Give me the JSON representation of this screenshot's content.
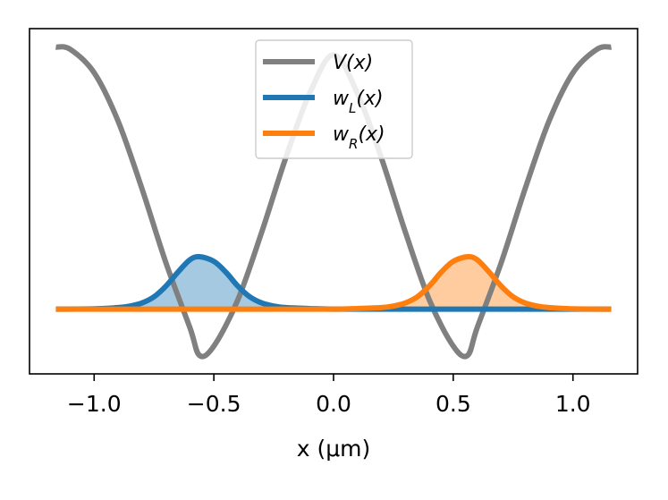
{
  "chart_data": {
    "type": "line",
    "title": "",
    "xlabel": "x (μm)",
    "ylabel": "",
    "xlim": [
      -1.27,
      1.27
    ],
    "ylim": [
      -0.06,
      1.06
    ],
    "x_ticks": [
      {
        "value": -1.0,
        "label": "−1.0"
      },
      {
        "value": -0.5,
        "label": "−0.5"
      },
      {
        "value": 0.0,
        "label": "0.0"
      },
      {
        "value": 0.5,
        "label": "0.5"
      },
      {
        "value": 1.0,
        "label": "1.0"
      }
    ],
    "y_ticks": [],
    "grid": false,
    "legend": {
      "placement": "top-center",
      "entries": [
        {
          "label": "V(x)",
          "color": "#808080"
        },
        {
          "label": "w_L(x)",
          "color": "#1f77b4"
        },
        {
          "label": "w_R(x)",
          "color": "#ff7f0e"
        }
      ]
    },
    "series": [
      {
        "name": "V(x)",
        "color": "#808080",
        "x": [
          -1.16,
          -1.1,
          -1.0,
          -0.9,
          -0.8,
          -0.7,
          -0.6,
          -0.56,
          -0.5,
          -0.4,
          -0.3,
          -0.2,
          -0.1,
          0.0,
          0.1,
          0.2,
          0.3,
          0.4,
          0.5,
          0.56,
          0.6,
          0.7,
          0.8,
          0.9,
          1.0,
          1.1,
          1.16
        ],
        "y": [
          1.0,
          0.993,
          0.917,
          0.76,
          0.54,
          0.3,
          0.09,
          0.0,
          0.03,
          0.18,
          0.4,
          0.64,
          0.85,
          0.975,
          0.85,
          0.64,
          0.4,
          0.18,
          0.03,
          0.0,
          0.09,
          0.3,
          0.54,
          0.76,
          0.917,
          0.993,
          1.0
        ]
      },
      {
        "name": "w_L(x)",
        "color": "#1f77b4",
        "fill": true,
        "x": [
          -1.16,
          -1.0,
          -0.9,
          -0.85,
          -0.8,
          -0.75,
          -0.7,
          -0.65,
          -0.6,
          -0.56,
          -0.5,
          -0.45,
          -0.4,
          -0.35,
          -0.3,
          -0.25,
          -0.2,
          -0.1,
          0.0,
          0.2,
          0.4,
          0.6,
          0.8,
          1.0,
          1.16
        ],
        "y": [
          0.15,
          0.151,
          0.155,
          0.16,
          0.17,
          0.19,
          0.225,
          0.27,
          0.31,
          0.32,
          0.305,
          0.27,
          0.225,
          0.19,
          0.17,
          0.16,
          0.155,
          0.152,
          0.15,
          0.15,
          0.15,
          0.15,
          0.15,
          0.15,
          0.15
        ]
      },
      {
        "name": "w_R(x)",
        "color": "#ff7f0e",
        "fill": true,
        "x": [
          -1.16,
          -1.0,
          -0.8,
          -0.6,
          -0.4,
          -0.2,
          0.0,
          0.1,
          0.2,
          0.25,
          0.3,
          0.35,
          0.4,
          0.45,
          0.5,
          0.56,
          0.6,
          0.65,
          0.7,
          0.75,
          0.8,
          0.85,
          0.9,
          1.0,
          1.16
        ],
        "y": [
          0.15,
          0.15,
          0.15,
          0.15,
          0.15,
          0.15,
          0.15,
          0.152,
          0.155,
          0.16,
          0.17,
          0.19,
          0.225,
          0.27,
          0.305,
          0.32,
          0.31,
          0.27,
          0.225,
          0.19,
          0.17,
          0.16,
          0.155,
          0.151,
          0.15
        ]
      }
    ]
  }
}
